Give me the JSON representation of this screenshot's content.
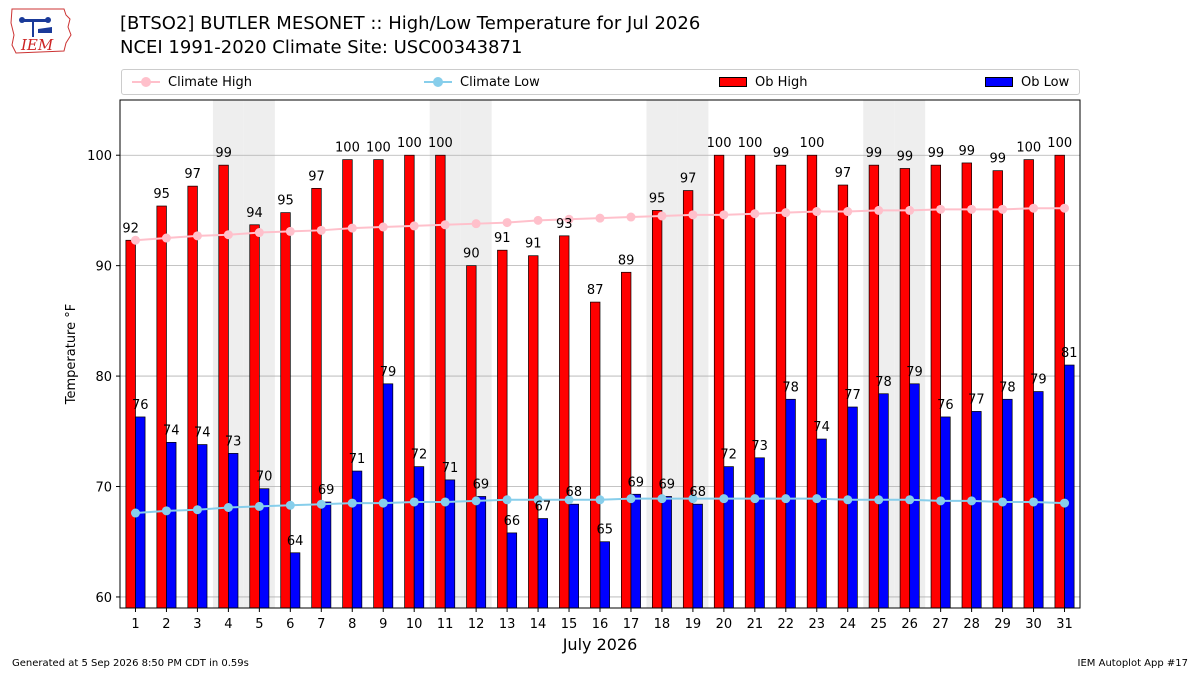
{
  "header": {
    "title_line1": "[BTSO2] BUTLER MESONET :: High/Low Temperature for Jul 2026",
    "title_line2": "NCEI 1991-2020 Climate Site: USC00343871",
    "logo_text": "IEM"
  },
  "footer": {
    "generated": "Generated at 5 Sep 2026 8:50 PM CDT in 0.59s",
    "app": "IEM Autoplot App #17"
  },
  "colors": {
    "ob_high": "#ff0000",
    "ob_low": "#0000ff",
    "climate_high": "#ffc0cb",
    "climate_low": "#87ceeb",
    "weekend_shade": "#eeeeee",
    "grid": "#b0b0b0"
  },
  "chart_data": {
    "type": "bar",
    "xlabel": "July 2026",
    "ylabel": "Temperature °F",
    "ylim": [
      59,
      105
    ],
    "yticks": [
      60,
      70,
      80,
      90,
      100
    ],
    "grid": true,
    "legend_position": "top",
    "categories": [
      "1",
      "2",
      "3",
      "4",
      "5",
      "6",
      "7",
      "8",
      "9",
      "10",
      "11",
      "12",
      "13",
      "14",
      "15",
      "16",
      "17",
      "18",
      "19",
      "20",
      "21",
      "22",
      "23",
      "24",
      "25",
      "26",
      "27",
      "28",
      "29",
      "30",
      "31"
    ],
    "shaded_days": [
      4,
      5,
      11,
      12,
      18,
      19,
      25,
      26
    ],
    "series": [
      {
        "name": "Ob High",
        "kind": "bar",
        "values": [
          92.3,
          95.4,
          97.2,
          99.1,
          93.7,
          94.8,
          97.0,
          99.6,
          99.6,
          100.0,
          100.0,
          90.0,
          91.4,
          90.9,
          92.7,
          86.7,
          89.4,
          95.0,
          96.8,
          100.0,
          100.0,
          99.1,
          100.0,
          97.3,
          99.1,
          98.8,
          99.1,
          99.3,
          98.6,
          99.6,
          100.0
        ],
        "labels": [
          "92",
          "95",
          "97",
          "99",
          "94",
          "95",
          "97",
          "100",
          "100",
          "100",
          "100",
          "90",
          "91",
          "91",
          "93",
          "87",
          "89",
          "95",
          "97",
          "100",
          "100",
          "99",
          "100",
          "97",
          "99",
          "99",
          "99",
          "99",
          "99",
          "100",
          "100"
        ]
      },
      {
        "name": "Ob Low",
        "kind": "bar",
        "values": [
          76.3,
          74.0,
          73.8,
          73.0,
          69.8,
          64.0,
          68.6,
          71.4,
          79.3,
          71.8,
          70.6,
          69.1,
          65.8,
          67.1,
          68.4,
          65.0,
          69.3,
          69.1,
          68.4,
          71.8,
          72.6,
          77.9,
          74.3,
          77.2,
          78.4,
          79.3,
          76.3,
          76.8,
          77.9,
          78.6,
          81.0
        ],
        "labels": [
          "76",
          "74",
          "74",
          "73",
          "70",
          "64",
          "69",
          "71",
          "79",
          "72",
          "71",
          "69",
          "66",
          "67",
          "68",
          "65",
          "69",
          "69",
          "68",
          "72",
          "73",
          "78",
          "74",
          "77",
          "78",
          "79",
          "76",
          "77",
          "78",
          "79",
          "81"
        ]
      },
      {
        "name": "Climate High",
        "kind": "line",
        "values": [
          92.3,
          92.5,
          92.7,
          92.8,
          93.0,
          93.1,
          93.2,
          93.4,
          93.5,
          93.6,
          93.7,
          93.8,
          93.9,
          94.1,
          94.2,
          94.3,
          94.4,
          94.5,
          94.6,
          94.6,
          94.7,
          94.8,
          94.9,
          94.9,
          95.0,
          95.0,
          95.1,
          95.1,
          95.1,
          95.2,
          95.2
        ]
      },
      {
        "name": "Climate Low",
        "kind": "line",
        "values": [
          67.6,
          67.8,
          67.9,
          68.1,
          68.2,
          68.3,
          68.4,
          68.5,
          68.5,
          68.6,
          68.6,
          68.7,
          68.8,
          68.8,
          68.8,
          68.8,
          68.9,
          68.9,
          68.9,
          68.9,
          68.9,
          68.9,
          68.9,
          68.8,
          68.8,
          68.8,
          68.7,
          68.7,
          68.6,
          68.6,
          68.5
        ]
      }
    ]
  }
}
